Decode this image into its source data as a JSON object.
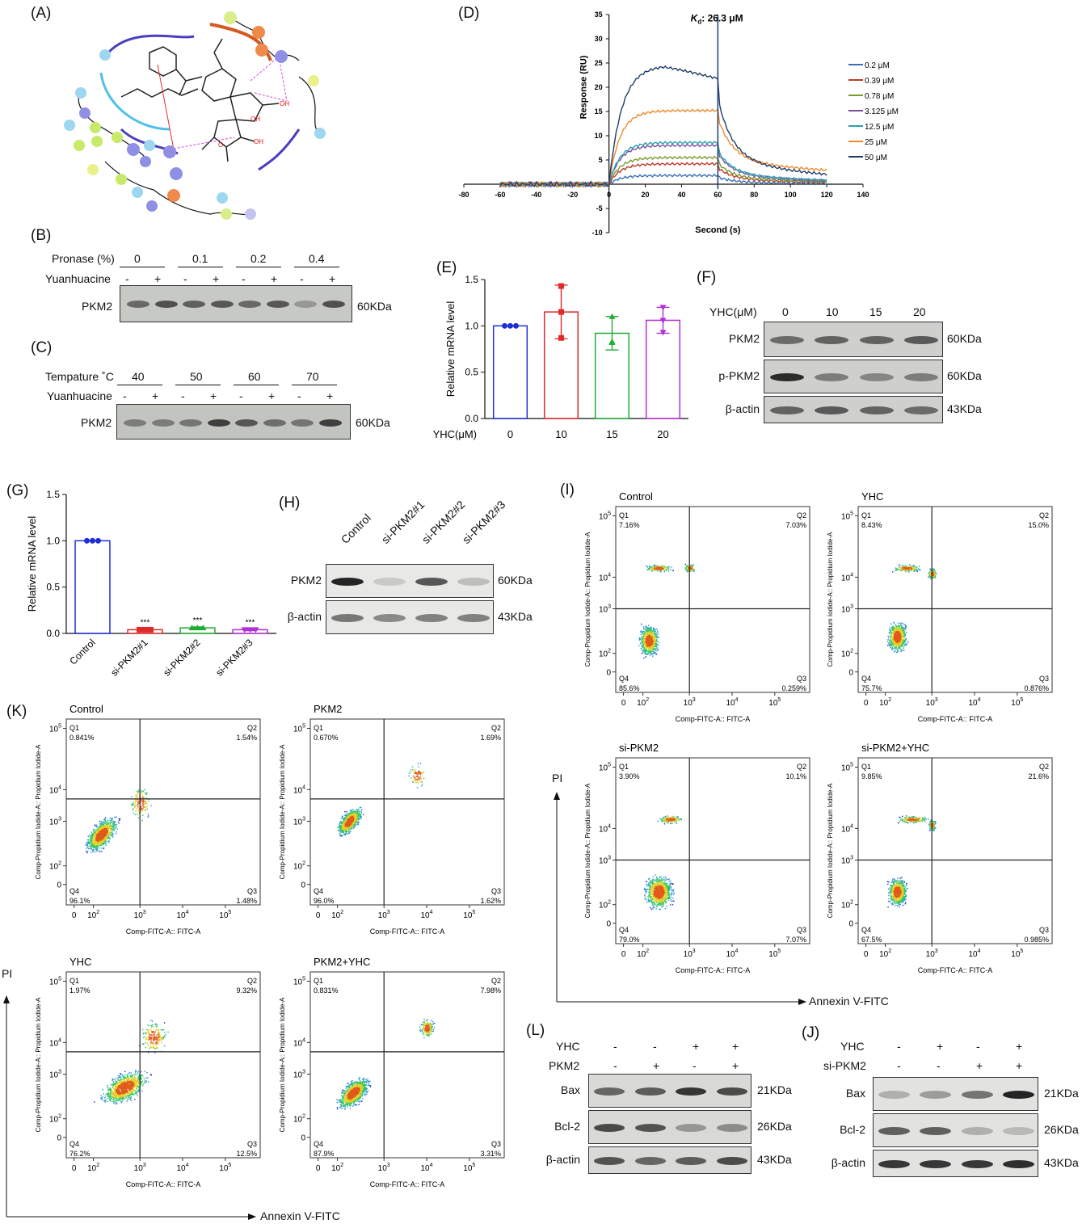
{
  "panels": {
    "A": "(A)",
    "B": "(B)",
    "C": "(C)",
    "D": "(D)",
    "E": "(E)",
    "F": "(F)",
    "G": "(G)",
    "H": "(H)",
    "I": "(I)",
    "J": "(J)",
    "K": "(K)",
    "L": "(L)"
  },
  "panel_b": {
    "row_label": "Pronase (%)",
    "groups": [
      "0",
      "0.1",
      "0.2",
      "0.4"
    ],
    "treat_label": "Yuanhuacine",
    "signs": [
      "-",
      "+",
      "-",
      "+",
      "-",
      "+",
      "-",
      "+"
    ],
    "band_label": "PKM2",
    "kda": "60KDa"
  },
  "panel_c": {
    "row_label": "Tempature ˚C",
    "groups": [
      "40",
      "50",
      "60",
      "70"
    ],
    "treat_label": "Yuanhuacine",
    "signs": [
      "-",
      "+",
      "-",
      "+",
      "-",
      "+",
      "-",
      "+"
    ],
    "band_label": "PKM2",
    "kda": "60KDa"
  },
  "panel_f": {
    "row_label": "YHC(μM)",
    "doses": [
      "0",
      "10",
      "15",
      "20"
    ],
    "rows": [
      {
        "label": "PKM2",
        "kda": "60KDa"
      },
      {
        "label": "p-PKM2",
        "kda": "60KDa"
      },
      {
        "label": "β-actin",
        "kda": "43KDa"
      }
    ]
  },
  "panel_h": {
    "lanes": [
      "Control",
      "si-PKM2#1",
      "si-PKM2#2",
      "si-PKM2#3"
    ],
    "rows": [
      {
        "label": "PKM2",
        "kda": "60KDa"
      },
      {
        "label": "β-actin",
        "kda": "43KDa"
      }
    ]
  },
  "panel_l": {
    "row1_label": "YHC",
    "row1_signs": [
      "-",
      "-",
      "+",
      "+"
    ],
    "row2_label": "PKM2",
    "row2_signs": [
      "-",
      "+",
      "-",
      "+"
    ],
    "rows": [
      {
        "label": "Bax",
        "kda": "21KDa"
      },
      {
        "label": "Bcl-2",
        "kda": "26KDa"
      },
      {
        "label": "β-actin",
        "kda": "43KDa"
      }
    ]
  },
  "panel_j": {
    "row1_label": "YHC",
    "row1_signs": [
      "-",
      "+",
      "-",
      "+"
    ],
    "row2_label": "si-PKM2",
    "row2_signs": [
      "-",
      "-",
      "+",
      "+"
    ],
    "rows": [
      {
        "label": "Bax",
        "kda": "21KDa"
      },
      {
        "label": "Bcl-2",
        "kda": "26KDa"
      },
      {
        "label": "β-actin",
        "kda": "43KDa"
      }
    ]
  },
  "flow_common": {
    "ylabel": "Comp-Propidium Iodide-A:: Propidium Iodide-A",
    "xlabel": "Comp-FITC-A:: FITC-A",
    "q1": "Q1",
    "q2": "Q2",
    "q3": "Q3",
    "q4": "Q4",
    "pi": "PI",
    "annexin": "Annexin V-FITC"
  },
  "flow_i": [
    {
      "title": "Control",
      "q1": "7.16%",
      "q2": "7.03%",
      "q3": "0.259%",
      "q4": "85.6%"
    },
    {
      "title": "YHC",
      "q1": "8.43%",
      "q2": "15.0%",
      "q3": "0.876%",
      "q4": "75.7%"
    },
    {
      "title": "si-PKM2",
      "q1": "3.90%",
      "q2": "10.1%",
      "q3": "7.07%",
      "q4": "79.0%"
    },
    {
      "title": "si-PKM2+YHC",
      "q1": "9.85%",
      "q2": "21.6%",
      "q3": "0.985%",
      "q4": "67.5%"
    }
  ],
  "flow_k": [
    {
      "title": "Control",
      "q1": "0.841%",
      "q2": "1.54%",
      "q3": "1.48%",
      "q4": "96.1%"
    },
    {
      "title": "PKM2",
      "q1": "0.670%",
      "q2": "1.69%",
      "q3": "1.62%",
      "q4": "96.0%"
    },
    {
      "title": "YHC",
      "q1": "1.97%",
      "q2": "9.32%",
      "q3": "12.5%",
      "q4": "76.2%"
    },
    {
      "title": "PKM2+YHC",
      "q1": "0.831%",
      "q2": "7.98%",
      "q3": "3.31%",
      "q4": "87.9%"
    }
  ],
  "chart_data": [
    {
      "id": "D",
      "type": "line",
      "annotation": "Kd: 26.3 μM",
      "annotation_k": "K",
      "annotation_sub": "d",
      "annotation_rest": ":  26.3 μM",
      "xlabel": "Second (s)",
      "ylabel": "Response (RU)",
      "xlim": [
        -80,
        140
      ],
      "ylim": [
        -10,
        35
      ],
      "xticks": [
        -80,
        -60,
        -40,
        -20,
        0,
        20,
        40,
        60,
        80,
        100,
        120,
        140
      ],
      "yticks": [
        -10,
        -5,
        5,
        10,
        15,
        20,
        25,
        30,
        35
      ],
      "series": [
        {
          "name": "0.2 μM",
          "color": "#3a6fb5",
          "plateau": 1.8
        },
        {
          "name": "0.39 μM",
          "color": "#c0392b",
          "plateau": 4.2
        },
        {
          "name": "0.78 μM",
          "color": "#7a9a2e",
          "plateau": 5.5
        },
        {
          "name": "3.125 μM",
          "color": "#7b4fa0",
          "plateau": 8.0
        },
        {
          "name": "12.5 μM",
          "color": "#2aa0b0",
          "plateau": 8.6
        },
        {
          "name": "25 μM",
          "color": "#ef8a2c",
          "plateau": 15.2
        },
        {
          "name": "50 μM",
          "color": "#1f3d6b",
          "plateau": 24.5
        }
      ]
    },
    {
      "id": "E",
      "type": "bar",
      "xlabel": "YHC(μM)",
      "ylabel": "Relative mRNA level",
      "categories": [
        "0",
        "10",
        "15",
        "20"
      ],
      "values": [
        1.0,
        1.15,
        0.92,
        1.06
      ],
      "errors": [
        0.0,
        0.29,
        0.18,
        0.14
      ],
      "points": [
        [
          1.0,
          1.0,
          1.0
        ],
        [
          1.43,
          1.15,
          0.87
        ],
        [
          1.1,
          0.83,
          0.82
        ],
        [
          1.2,
          1.06,
          0.93
        ]
      ],
      "colors": [
        "#1f2fd6",
        "#e02a2a",
        "#1fae33",
        "#b12fd6"
      ],
      "markers": [
        "circle",
        "square",
        "triangle",
        "triangle-down"
      ],
      "ylim": [
        0.0,
        1.5
      ],
      "yticks": [
        "0.0",
        "0.5",
        "1.0",
        "1.5"
      ]
    },
    {
      "id": "G",
      "type": "bar",
      "xlabel": "",
      "ylabel": "Relative mRNA level",
      "categories": [
        "Control",
        "si-PKM2#1",
        "si-PKM2#2",
        "si-PKM2#3"
      ],
      "values": [
        1.0,
        0.04,
        0.06,
        0.04
      ],
      "errors": [
        0.0,
        0.01,
        0.01,
        0.01
      ],
      "points": [
        [
          1.0,
          1.0,
          1.0
        ],
        [
          0.04,
          0.04,
          0.04
        ],
        [
          0.06,
          0.06,
          0.06
        ],
        [
          0.04,
          0.04,
          0.04
        ]
      ],
      "colors": [
        "#1f2fd6",
        "#e02a2a",
        "#1fae33",
        "#b12fd6"
      ],
      "markers": [
        "circle",
        "square",
        "triangle",
        "triangle-down"
      ],
      "significance": [
        "",
        "***",
        "***",
        "***"
      ],
      "ylim": [
        0.0,
        1.5
      ],
      "yticks": [
        "0.0",
        "0.5",
        "1.0",
        "1.5"
      ]
    }
  ]
}
